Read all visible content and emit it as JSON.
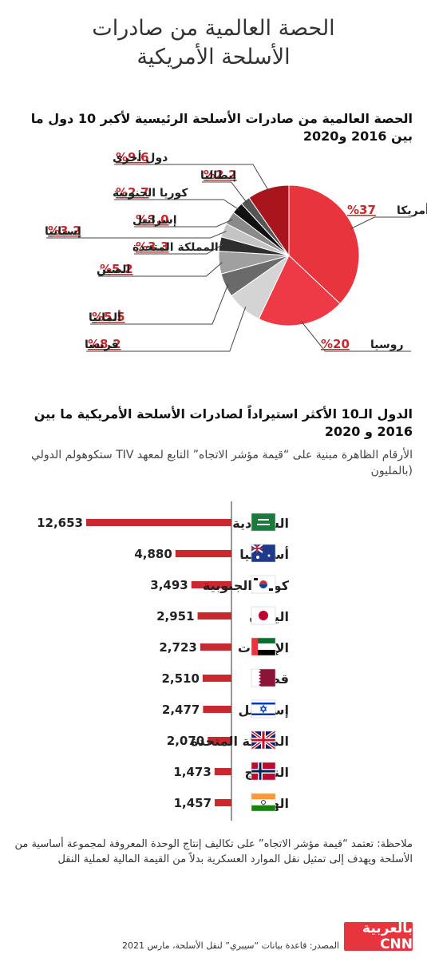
{
  "header": {
    "title_line1": "الحصة العالمية من صادرات",
    "title_line2": "الأسلحة الأمريكية"
  },
  "pie_section": {
    "title": "الحصة العالمية من صادرات الأسلحة الرئيسية لأكبر 10 دول ما بين 2016 و2020"
  },
  "bar_section": {
    "title": "الدول الـ10 الأكثر استيراداً لصادرات الأسلحة الأمريكية ما بين 2016 و 2020",
    "subtitle": "الأرقام الظاهرة مبنية على “قيمة مؤشر الاتجاه” التابع لمعهد TIV ستكوهولم الدولي (بالمليون"
  },
  "note": "ملاحظة: تعتمد “قيمة مؤشر الاتجاه” على تكاليف إنتاج الوحدة المعروفة لمجموعة أساسية من الأسلحة ويهدف إلى تمثيل نقل الموارد العسكرية بدلاً من القيمة المالية لعملية النقل",
  "footer": {
    "source": "المصدر: قاعدة بيانات “سيبري” لنقل الأسلحة، مارس 2021",
    "logo_text": "بالعربية CNN"
  },
  "colors": {
    "red": "#e8343d",
    "dark_red": "#a8151d",
    "bar": "#c8282e",
    "text": "#222222"
  },
  "chart_data": [
    {
      "type": "pie",
      "title": "الحصة العالمية من صادرات الأسلحة الرئيسية لأكبر 10 دول ما بين 2016 و2020",
      "slices": [
        {
          "name": "أمريكا",
          "label": "%37",
          "value": 37,
          "color": "#e8343d"
        },
        {
          "name": "روسيا",
          "label": "%20",
          "value": 20,
          "color": "#ee3a46"
        },
        {
          "name": "فرنسا",
          "label": "%8.2",
          "value": 8.2,
          "color": "#d4d4d4"
        },
        {
          "name": "ألمانيا",
          "label": "%5.5",
          "value": 5.5,
          "color": "#6a6a6a"
        },
        {
          "name": "الصين",
          "label": "%5.2",
          "value": 5.2,
          "color": "#a0a0a0"
        },
        {
          "name": "المملكة المتحدة",
          "label": "%3.3",
          "value": 3.3,
          "color": "#2e2e2e"
        },
        {
          "name": "إسبانيا",
          "label": "%3.2",
          "value": 3.2,
          "color": "#c4c4c4"
        },
        {
          "name": "إسرائيل",
          "label": "%3.0",
          "value": 3.0,
          "color": "#8a8a8a"
        },
        {
          "name": "كوريا الجنوبية",
          "label": "%2.7",
          "value": 2.7,
          "color": "#111111"
        },
        {
          "name": "إيطاليا",
          "label": "%2.2",
          "value": 2.2,
          "color": "#555555"
        },
        {
          "name": "دول أخرى",
          "label": "%9.6",
          "value": 9.6,
          "color": "#a8151d"
        }
      ]
    },
    {
      "type": "bar",
      "title": "الدول الـ10 الأكثر استيراداً لصادرات الأسلحة الأمريكية ما بين 2016 و 2020",
      "categories": [
        "السعودية",
        "أستراليا",
        "كوريا الجنوبية",
        "اليابان",
        "الإمارات",
        "قطر",
        "إسرائيل",
        "المملكة المتحدة",
        "النرويج",
        "الهند"
      ],
      "values": [
        12653,
        4880,
        3493,
        2951,
        2723,
        2510,
        2477,
        2070,
        1473,
        1457
      ],
      "value_labels": [
        "12,653",
        "4,880",
        "3,493",
        "2,951",
        "2,723",
        "2,510",
        "2,477",
        "2,070",
        "1,473",
        "1,457"
      ],
      "flags": [
        "saudi-flag",
        "australia-flag",
        "south-korea-flag",
        "japan-flag",
        "uae-flag",
        "qatar-flag",
        "israel-flag",
        "uk-flag",
        "norway-flag",
        "india-flag"
      ]
    }
  ]
}
